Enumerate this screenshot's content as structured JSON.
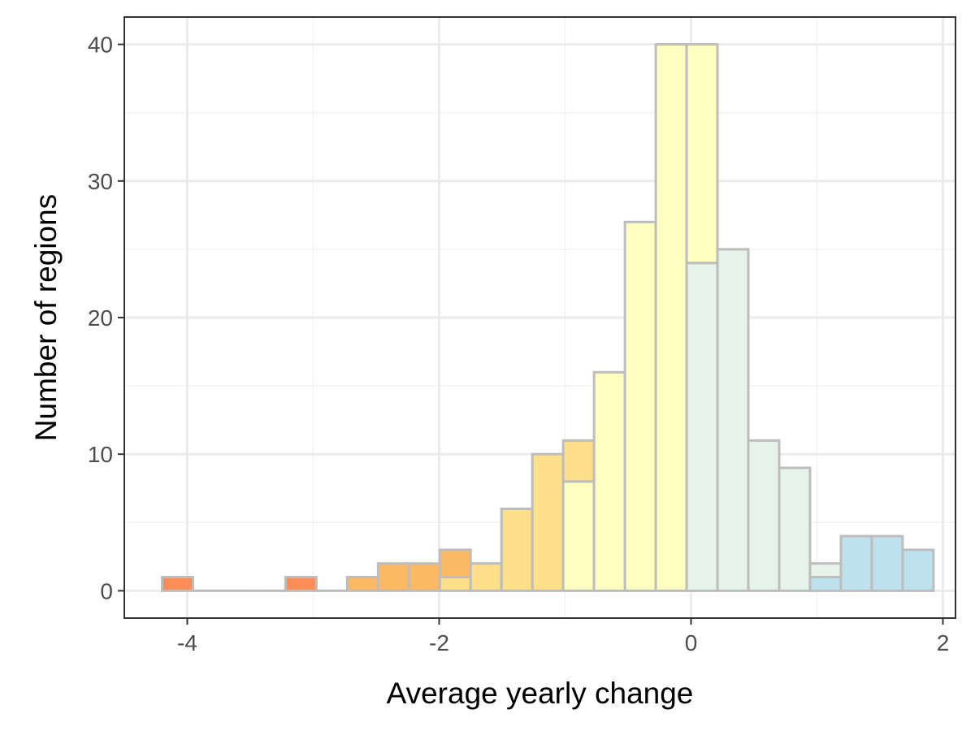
{
  "chart_data": {
    "type": "bar",
    "subtype": "stacked-histogram",
    "xlabel": "Average yearly change",
    "ylabel": "Number of regions",
    "xlim": [
      -4.5,
      2.1
    ],
    "ylim": [
      -2,
      42
    ],
    "x_ticks": [
      -4,
      -2,
      0,
      2
    ],
    "x_tick_labels": [
      "-4",
      "-2",
      "0",
      "2"
    ],
    "y_ticks": [
      0,
      10,
      20,
      30,
      40
    ],
    "y_tick_labels": [
      "0",
      "10",
      "20",
      "30",
      "40"
    ],
    "grid": true,
    "legend": "none",
    "bin_width": 0.245,
    "bar_outline_color": "#bdbdbd",
    "bins": [
      {
        "x0": -4.2,
        "segments": [
          {
            "color": "#fc8d59",
            "count": 1
          }
        ]
      },
      {
        "x0": -3.955,
        "segments": []
      },
      {
        "x0": -3.71,
        "segments": []
      },
      {
        "x0": -3.465,
        "segments": []
      },
      {
        "x0": -3.22,
        "segments": [
          {
            "color": "#fc8d59",
            "count": 1
          }
        ]
      },
      {
        "x0": -2.975,
        "segments": []
      },
      {
        "x0": -2.73,
        "segments": [
          {
            "color": "#fdb863",
            "count": 1
          }
        ]
      },
      {
        "x0": -2.485,
        "segments": [
          {
            "color": "#fdb863",
            "count": 2
          }
        ]
      },
      {
        "x0": -2.24,
        "segments": [
          {
            "color": "#fdb863",
            "count": 2
          }
        ]
      },
      {
        "x0": -1.995,
        "segments": [
          {
            "color": "#fee08b",
            "count": 1
          },
          {
            "color": "#fdb863",
            "count": 2
          }
        ]
      },
      {
        "x0": -1.75,
        "segments": [
          {
            "color": "#fee08b",
            "count": 2
          }
        ]
      },
      {
        "x0": -1.505,
        "segments": [
          {
            "color": "#fee08b",
            "count": 6
          }
        ]
      },
      {
        "x0": -1.26,
        "segments": [
          {
            "color": "#fee08b",
            "count": 10
          }
        ]
      },
      {
        "x0": -1.015,
        "segments": [
          {
            "color": "#ffffbf",
            "count": 8
          },
          {
            "color": "#fee08b",
            "count": 3
          }
        ]
      },
      {
        "x0": -0.77,
        "segments": [
          {
            "color": "#ffffbf",
            "count": 16
          }
        ]
      },
      {
        "x0": -0.525,
        "segments": [
          {
            "color": "#ffffbf",
            "count": 27
          }
        ]
      },
      {
        "x0": -0.28,
        "segments": [
          {
            "color": "#ffffbf",
            "count": 40
          }
        ]
      },
      {
        "x0": -0.035,
        "segments": [
          {
            "color": "#e6f3ea",
            "count": 24
          },
          {
            "color": "#ffffbf",
            "count": 16
          }
        ]
      },
      {
        "x0": 0.21,
        "segments": [
          {
            "color": "#e6f3ea",
            "count": 25
          }
        ]
      },
      {
        "x0": 0.455,
        "segments": [
          {
            "color": "#e6f3ea",
            "count": 11
          }
        ]
      },
      {
        "x0": 0.7,
        "segments": [
          {
            "color": "#e6f3ea",
            "count": 9
          }
        ]
      },
      {
        "x0": 0.945,
        "segments": [
          {
            "color": "#bde1ee",
            "count": 1
          },
          {
            "color": "#e6f3ea",
            "count": 1
          }
        ]
      },
      {
        "x0": 1.19,
        "segments": [
          {
            "color": "#bde1ee",
            "count": 4
          }
        ]
      },
      {
        "x0": 1.435,
        "segments": [
          {
            "color": "#bde1ee",
            "count": 4
          }
        ]
      },
      {
        "x0": 1.68,
        "segments": [
          {
            "color": "#bde1ee",
            "count": 3
          }
        ]
      }
    ]
  }
}
